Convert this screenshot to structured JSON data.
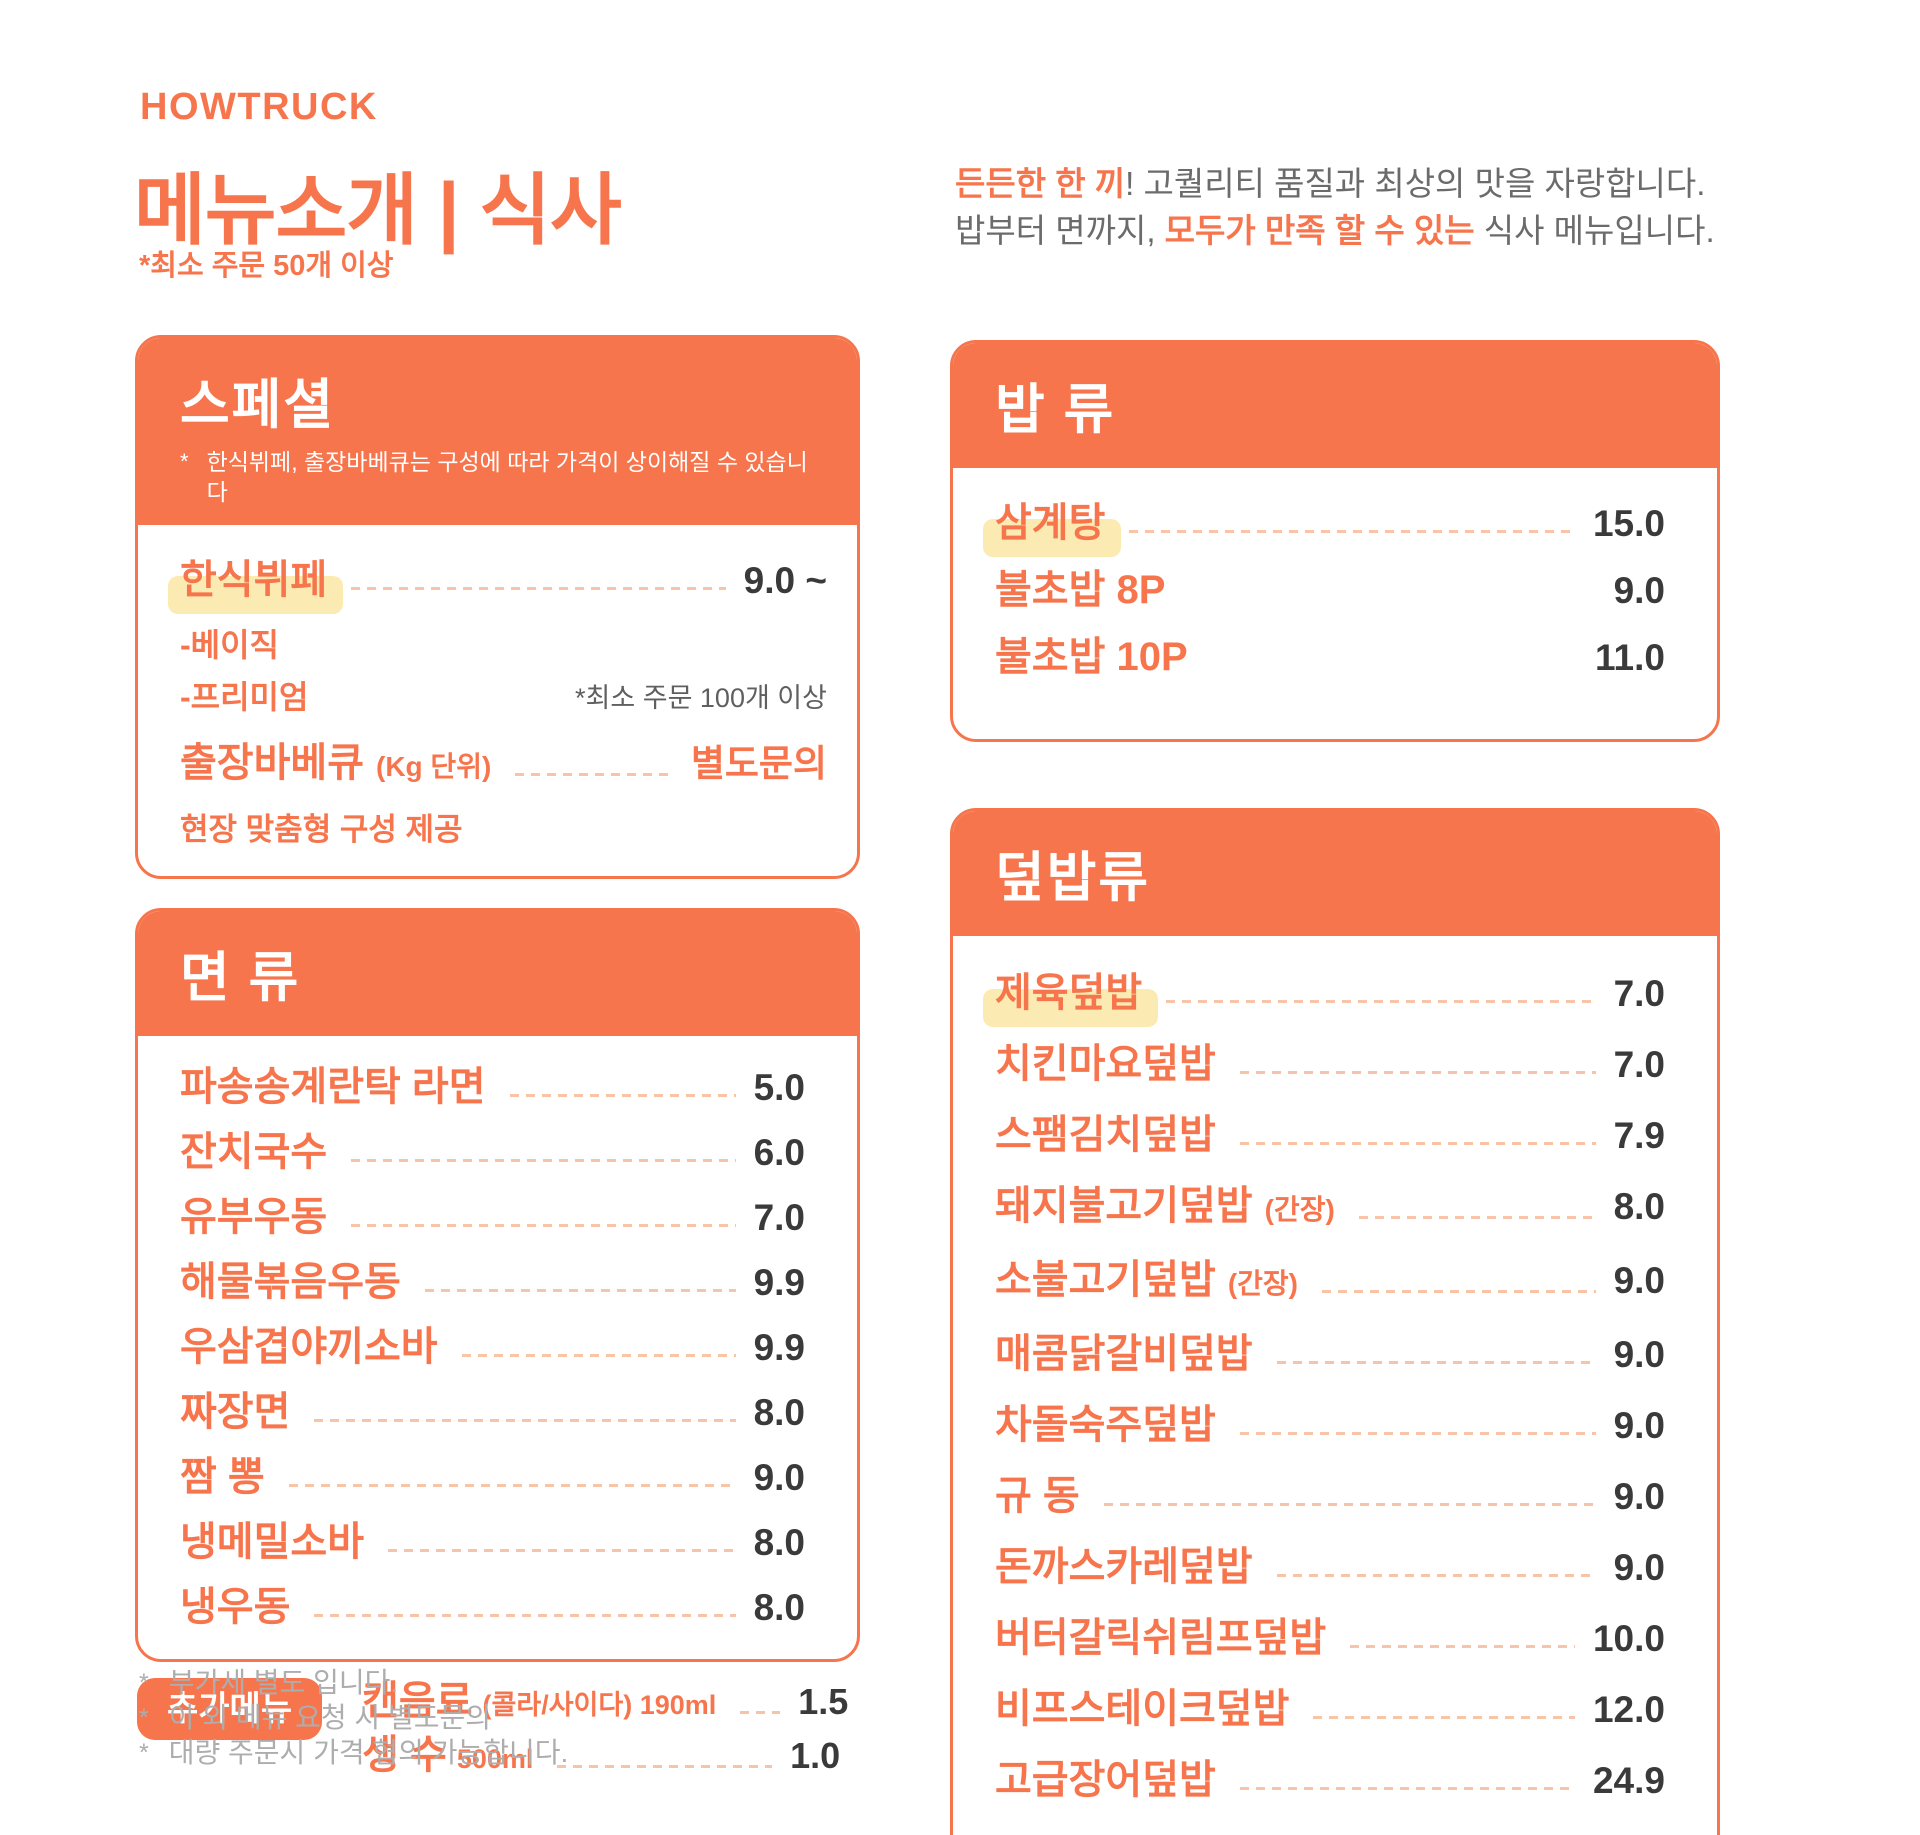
{
  "theme": {
    "accent": "#F7754C",
    "leader-dash": "#F8C3A7",
    "highlight": "#FBEBB2",
    "ink": "#3A3A3A",
    "intro-gray": "#6B6B6B",
    "note-gray": "#5F5F5F",
    "footnote-gray": "#ADADAD"
  },
  "brand": {
    "logo": "HOWTRUCK"
  },
  "header": {
    "title": "메뉴소개 | 식사",
    "subtitle": "*최소 주문 50개 이상",
    "intro1_accent": "든든한 한 끼",
    "intro1_rest": "! 고퀄리티 품질과 최상의 맛을 자랑합니다.",
    "intro2_prefix": "밥부터 면까지, ",
    "intro2_accent": "모두가 만족 할 수 있는",
    "intro2_rest": " 식사 메뉴입니다."
  },
  "special": {
    "title": "스페셜",
    "note_mark": "*",
    "note": "한식뷔페, 출장바베큐는 구성에 따라 가격이 상이해질 수 있습니다",
    "item1_name": "한식뷔페",
    "item1_price": "9.0 ~",
    "sub1": "-베이직",
    "sub2": "-프리미엄",
    "sub2_note": "*최소 주문 100개 이상",
    "item2_name": "출장바베큐",
    "item2_suffix": "(Kg 단위)",
    "item2_price": "별도문의",
    "item2_desc": "현장 맞춤형 구성 제공"
  },
  "rice": {
    "title": "밥 류",
    "items": [
      {
        "name": "삼계탕",
        "highlight": true,
        "price": "15.0"
      },
      {
        "name": "불초밥 8P",
        "price": "9.0",
        "leader": false
      },
      {
        "name": "불초밥 10P",
        "price": "11.0",
        "leader": false
      }
    ]
  },
  "noodles": {
    "title": "면 류",
    "items": [
      {
        "name": "파송송계란탁 라면",
        "price": "5.0"
      },
      {
        "name": "잔치국수",
        "price": "6.0"
      },
      {
        "name": "유부우동",
        "price": "7.0"
      },
      {
        "name": "해물볶음우동",
        "price": "9.9"
      },
      {
        "name": "우삼겹야끼소바",
        "price": "9.9"
      },
      {
        "name": "짜장면",
        "price": "8.0"
      },
      {
        "name": "짬 뽕",
        "price": "9.0"
      },
      {
        "name": "냉메밀소바",
        "price": "8.0"
      },
      {
        "name": "냉우동",
        "price": "8.0"
      }
    ]
  },
  "bowls": {
    "title": "덮밥류",
    "items": [
      {
        "name": "제육덮밥",
        "highlight": true,
        "price": "7.0"
      },
      {
        "name": "치킨마요덮밥",
        "price": "7.0"
      },
      {
        "name": "스팸김치덮밥",
        "price": "7.9"
      },
      {
        "name": "돼지불고기덮밥",
        "suffix": "(간장)",
        "price": "8.0"
      },
      {
        "name": "소불고기덮밥",
        "suffix": "(간장)",
        "price": "9.0"
      },
      {
        "name": "매콤닭갈비덮밥",
        "price": "9.0"
      },
      {
        "name": "차돌숙주덮밥",
        "price": "9.0"
      },
      {
        "name": "규 동",
        "price": "9.0"
      },
      {
        "name": "돈까스카레덮밥",
        "price": "9.0"
      },
      {
        "name": "버터갈릭쉬림프덮밥",
        "price": "10.0"
      },
      {
        "name": "비프스테이크덮밥",
        "price": "12.0"
      },
      {
        "name": "고급장어덮밥",
        "price": "24.9"
      }
    ]
  },
  "extras": {
    "badge": "추가메뉴",
    "items": [
      {
        "name": "캔음료",
        "suffix": "(콜라/사이다) 190ml",
        "price": "1.5"
      },
      {
        "name": "생 수",
        "suffix": "500ml",
        "price": "1.0"
      }
    ]
  },
  "footnotes": [
    {
      "mark": "*",
      "text": "부가세 별도 입니다."
    },
    {
      "mark": "*",
      "text": "이 외 메뉴 요청 시 별도문의"
    },
    {
      "mark": "*",
      "text": "대량 주문시 가격 협의 가능합니다."
    }
  ]
}
